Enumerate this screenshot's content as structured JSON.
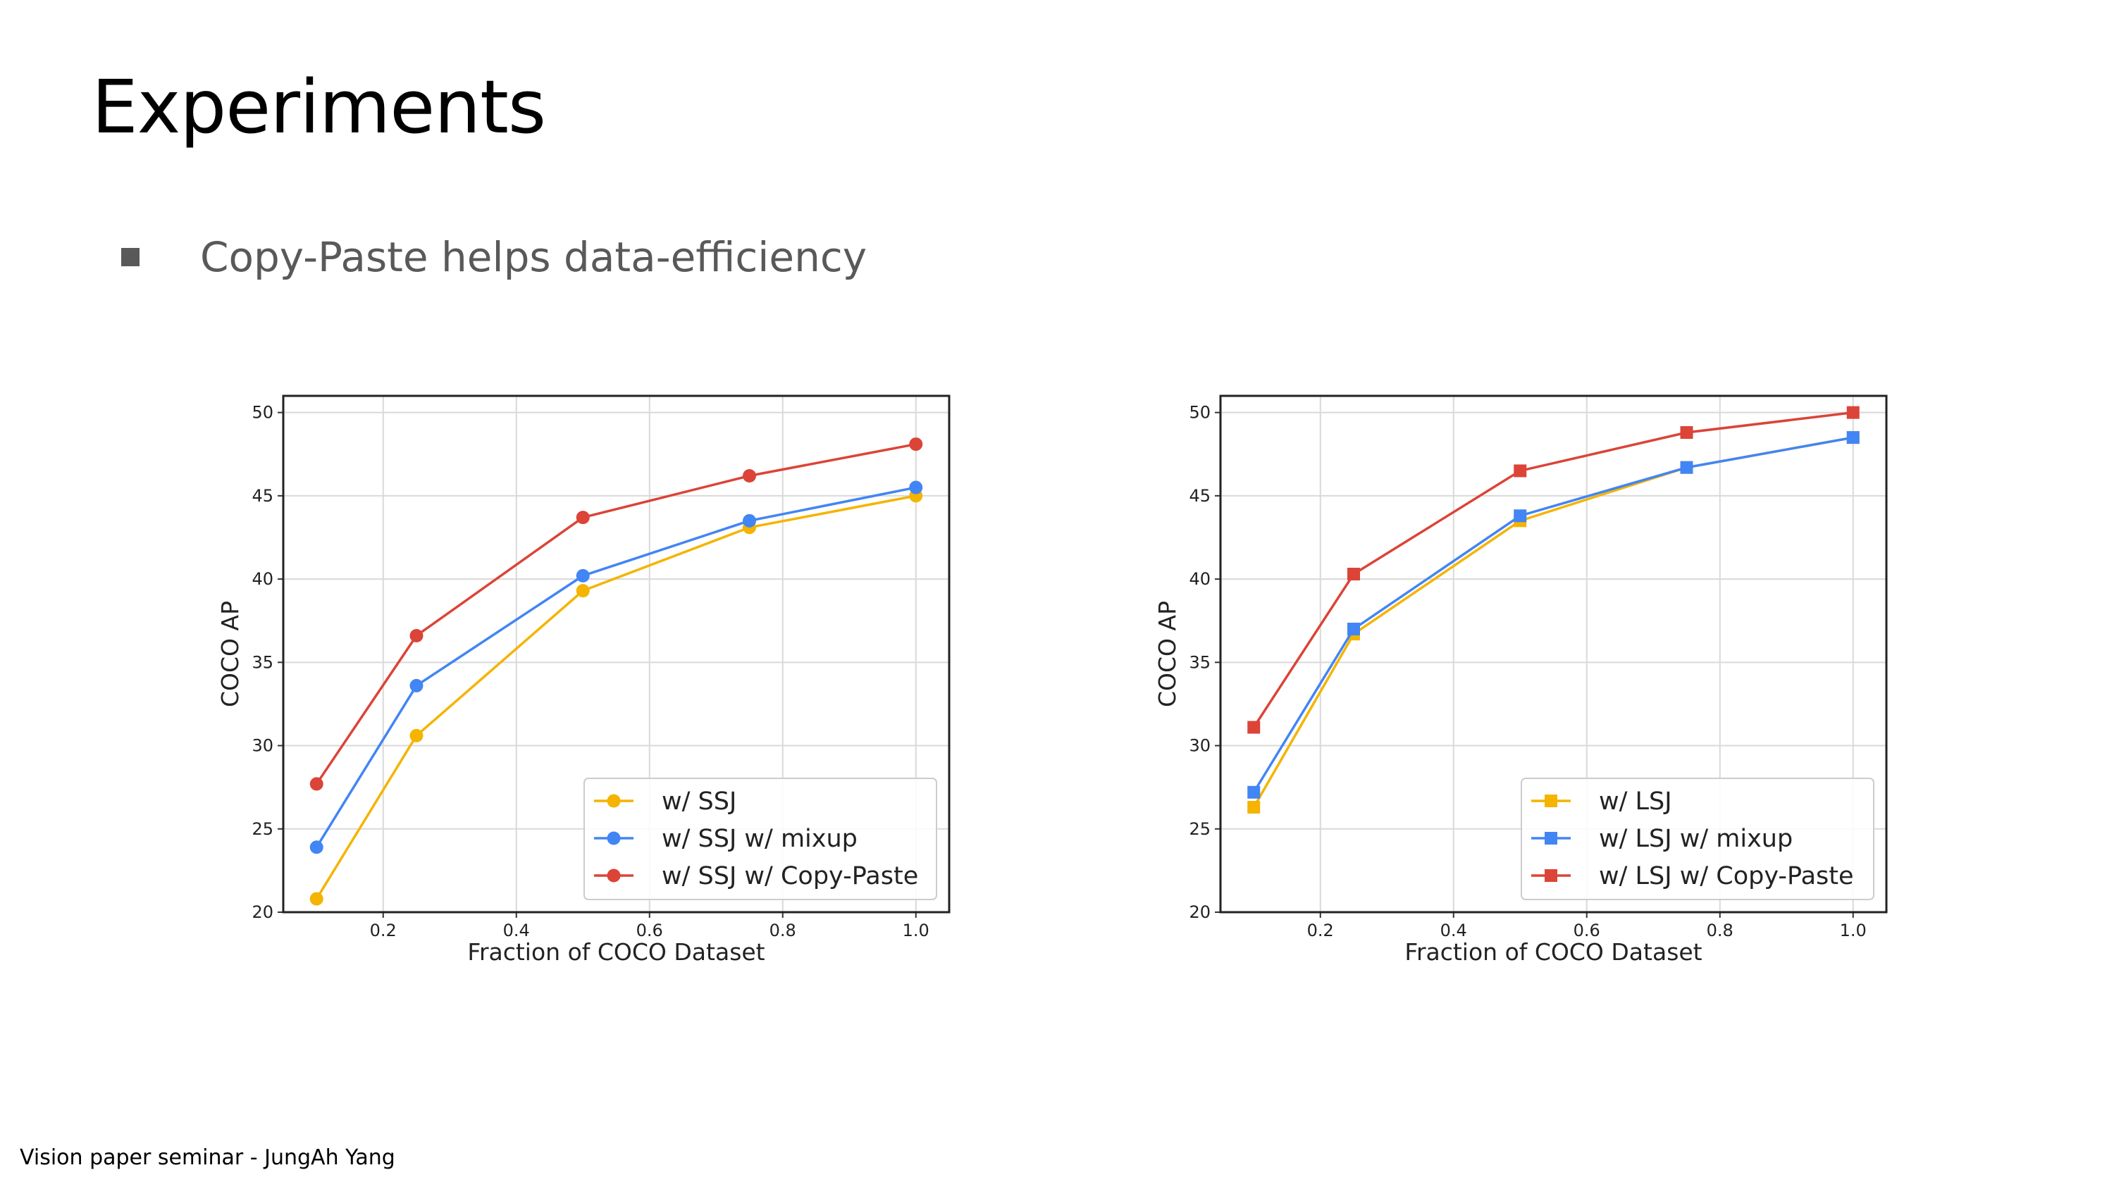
{
  "slide": {
    "title": "Experiments",
    "bullet": "Copy-Paste helps data-efficiency",
    "footer": "Vision paper seminar - JungAh Yang"
  },
  "chart_data": [
    {
      "type": "line",
      "title": "",
      "xlabel": "Fraction of COCO Dataset",
      "ylabel": "COCO AP",
      "xlim": [
        0.05,
        1.05
      ],
      "ylim": [
        20,
        51
      ],
      "xticks": [
        "0.2",
        "0.4",
        "0.6",
        "0.8",
        "1.0"
      ],
      "yticks": [
        "20",
        "25",
        "30",
        "35",
        "40",
        "45",
        "50"
      ],
      "grid": true,
      "legend_position": "lower-right",
      "marker": "circle",
      "x": [
        0.1,
        0.25,
        0.5,
        0.75,
        1.0
      ],
      "series": [
        {
          "name": "w/ SSJ",
          "color": "#f4b400",
          "values": [
            20.8,
            30.6,
            39.3,
            43.1,
            45.0
          ]
        },
        {
          "name": "w/ SSJ w/ mixup",
          "color": "#4285f4",
          "values": [
            23.9,
            33.6,
            40.2,
            43.5,
            45.5
          ]
        },
        {
          "name": "w/ SSJ w/ Copy-Paste",
          "color": "#db4437",
          "values": [
            27.7,
            36.6,
            43.7,
            46.2,
            48.1
          ]
        }
      ]
    },
    {
      "type": "line",
      "title": "",
      "xlabel": "Fraction of COCO Dataset",
      "ylabel": "COCO AP",
      "xlim": [
        0.05,
        1.05
      ],
      "ylim": [
        20,
        51
      ],
      "xticks": [
        "0.2",
        "0.4",
        "0.6",
        "0.8",
        "1.0"
      ],
      "yticks": [
        "20",
        "25",
        "30",
        "35",
        "40",
        "45",
        "50"
      ],
      "grid": true,
      "legend_position": "lower-right",
      "marker": "square",
      "x": [
        0.1,
        0.25,
        0.5,
        0.75,
        1.0
      ],
      "series": [
        {
          "name": "w/ LSJ",
          "color": "#f4b400",
          "values": [
            26.3,
            36.7,
            43.5,
            46.7,
            48.5
          ]
        },
        {
          "name": "w/ LSJ w/ mixup",
          "color": "#4285f4",
          "values": [
            27.2,
            37.0,
            43.8,
            46.7,
            48.5
          ]
        },
        {
          "name": "w/ LSJ w/ Copy-Paste",
          "color": "#db4437",
          "values": [
            31.1,
            40.3,
            46.5,
            48.8,
            50.0
          ]
        }
      ]
    }
  ]
}
